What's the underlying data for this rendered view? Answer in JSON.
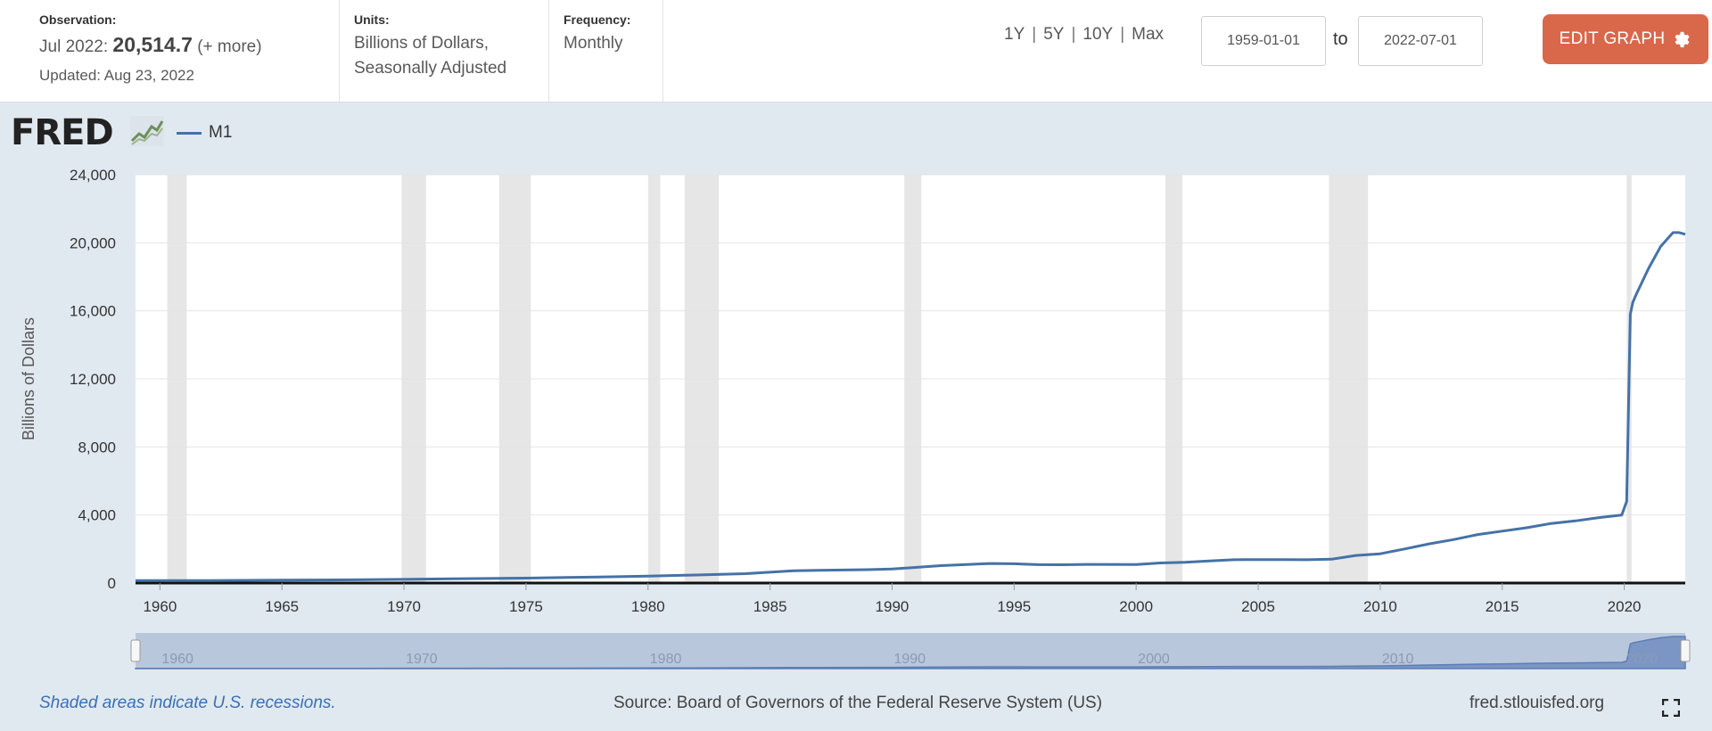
{
  "header": {
    "observation_label": "Observation:",
    "observation_date": "Jul 2022:",
    "observation_value": "20,514.7",
    "observation_more": "(+ more)",
    "updated": "Updated: Aug 23, 2022",
    "units_label": "Units:",
    "units_line1": "Billions of Dollars,",
    "units_line2": "Seasonally Adjusted",
    "frequency_label": "Frequency:",
    "frequency_value": "Monthly",
    "range_links": [
      "1Y",
      "5Y",
      "10Y",
      "Max"
    ],
    "start_date": "1959-01-01",
    "to_label": "to",
    "end_date": "2022-07-01",
    "edit_button": "EDIT GRAPH"
  },
  "logo": "FRED",
  "legend_label": "M1",
  "footer": {
    "recession_note": "Shaded areas indicate U.S. recessions.",
    "source": "Source: Board of Governors of the Federal Reserve System (US)",
    "site": "fred.stlouisfed.org"
  },
  "colors": {
    "series": "#4572a7",
    "recession": "#e6e6e6",
    "button": "#d9674a",
    "background": "#e1e9f0"
  },
  "chart_data": {
    "type": "line",
    "ylabel": "Billions of Dollars",
    "xlim": [
      1959.0,
      2022.5
    ],
    "ylim": [
      0,
      24000
    ],
    "yticks": [
      0,
      4000,
      8000,
      12000,
      16000,
      20000,
      24000
    ],
    "ytick_labels": [
      "0",
      "4,000",
      "8,000",
      "12,000",
      "16,000",
      "20,000",
      "24,000"
    ],
    "xticks": [
      1960,
      1965,
      1970,
      1975,
      1980,
      1985,
      1990,
      1995,
      2000,
      2005,
      2010,
      2015,
      2020
    ],
    "navigator_ticks": [
      1960,
      1970,
      1980,
      1990,
      2000,
      2010,
      2020
    ],
    "grid": true,
    "legend_position": "top-left",
    "recessions": [
      [
        1960.3,
        1961.1
      ],
      [
        1969.9,
        1970.9
      ],
      [
        1973.9,
        1975.2
      ],
      [
        1980.0,
        1980.5
      ],
      [
        1981.5,
        1982.9
      ],
      [
        1990.5,
        1991.2
      ],
      [
        2001.2,
        2001.9
      ],
      [
        2007.9,
        2009.5
      ],
      [
        2020.1,
        2020.3
      ]
    ],
    "series": [
      {
        "name": "M1",
        "x": [
          1959.0,
          1962.0,
          1965.0,
          1968.0,
          1970.0,
          1972.0,
          1975.0,
          1978.0,
          1980.0,
          1982.0,
          1984.0,
          1986.0,
          1987.0,
          1989.0,
          1990.0,
          1992.0,
          1994.0,
          1995.0,
          1996.0,
          1997.0,
          1998.0,
          2000.0,
          2001.0,
          2002.0,
          2003.0,
          2004.0,
          2005.0,
          2006.0,
          2007.0,
          2008.0,
          2008.7,
          2009.0,
          2010.0,
          2011.0,
          2012.0,
          2013.0,
          2014.0,
          2015.0,
          2016.0,
          2017.0,
          2018.0,
          2019.0,
          2019.9,
          2020.1,
          2020.25,
          2020.35,
          2020.5,
          2021.0,
          2021.5,
          2022.0,
          2022.25,
          2022.5
        ],
        "y": [
          139,
          145,
          167,
          190,
          214,
          249,
          287,
          357,
          408,
          474,
          552,
          725,
          750,
          786,
          825,
          1024,
          1148,
          1130,
          1080,
          1073,
          1095,
          1085,
          1180,
          1220,
          1300,
          1370,
          1380,
          1375,
          1370,
          1400,
          1550,
          1620,
          1720,
          2000,
          2300,
          2550,
          2850,
          3050,
          3250,
          3500,
          3650,
          3850,
          4000,
          4800,
          15800,
          16500,
          17000,
          18500,
          19800,
          20600,
          20600,
          20500
        ]
      }
    ]
  }
}
